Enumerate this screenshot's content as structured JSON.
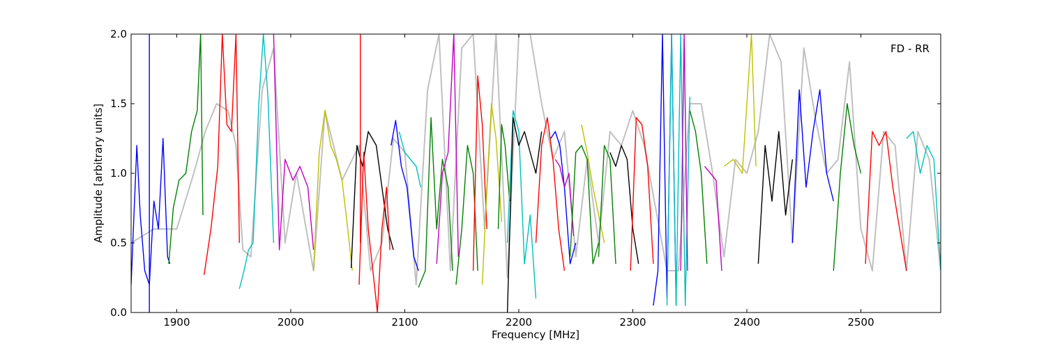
{
  "chart_data": {
    "type": "line",
    "title": "",
    "annotation": "FD - RR",
    "xlabel": "Frequency [MHz]",
    "ylabel": "Amplitude [arbitrary units]",
    "xlim": [
      1860,
      2570
    ],
    "ylim": [
      0.0,
      2.0
    ],
    "xticks": [
      1900,
      2000,
      2100,
      2200,
      2300,
      2400,
      2500
    ],
    "xtick_labels": [
      "1900",
      "2000",
      "2100",
      "2200",
      "2300",
      "2400",
      "2500"
    ],
    "yticks": [
      0.0,
      0.5,
      1.0,
      1.5,
      2.0
    ],
    "ytick_labels": [
      "0.0",
      "0.5",
      "1.0",
      "1.5",
      "2.0"
    ],
    "grid": false,
    "legend": "none",
    "background_series": {
      "color": "#c0c0c0",
      "x": [
        1860,
        1880,
        1900,
        1915,
        1925,
        1935,
        1945,
        1952,
        1958,
        1965,
        1975,
        1985,
        1995,
        2005,
        2020,
        2030,
        2045,
        2060,
        2070,
        2080,
        2090,
        2100,
        2110,
        2120,
        2130,
        2140,
        2150,
        2160,
        2170,
        2180,
        2190,
        2200,
        2210,
        2220,
        2230,
        2240,
        2250,
        2260,
        2270,
        2280,
        2290,
        2300,
        2310,
        2320,
        2330,
        2340,
        2350,
        2360,
        2370,
        2380,
        2390,
        2400,
        2410,
        2420,
        2430,
        2440,
        2450,
        2460,
        2470,
        2480,
        2490,
        2500,
        2510,
        2520,
        2530,
        2540,
        2550,
        2560,
        2570
      ],
      "y": [
        0.5,
        0.6,
        0.6,
        1.0,
        1.3,
        1.5,
        1.45,
        1.2,
        0.45,
        0.4,
        1.6,
        1.9,
        0.5,
        1.0,
        0.3,
        1.45,
        0.95,
        1.2,
        0.3,
        0.5,
        1.25,
        1.15,
        0.2,
        1.6,
        2.0,
        0.3,
        1.9,
        2.0,
        0.6,
        2.0,
        0.25,
        2.0,
        2.0,
        1.5,
        1.1,
        1.3,
        0.4,
        1.1,
        0.5,
        1.3,
        1.2,
        1.45,
        1.2,
        0.75,
        0.3,
        0.3,
        1.5,
        1.5,
        1.0,
        0.4,
        1.1,
        1.0,
        1.3,
        2.0,
        1.8,
        0.5,
        1.9,
        1.4,
        1.0,
        1.1,
        1.8,
        0.6,
        0.3,
        1.3,
        1.2,
        0.3,
        1.3,
        1.1,
        0.3
      ]
    },
    "series": [
      {
        "color": "#0000ff",
        "x": [
          1860,
          1865,
          1868,
          1872,
          1876,
          1880,
          1884,
          1888,
          1892,
          1894
        ],
        "y": [
          0.2,
          1.2,
          0.7,
          0.3,
          0.2,
          0.8,
          0.6,
          1.25,
          0.4,
          0.35
        ]
      },
      {
        "color": "#0000ff",
        "x": [
          1876,
          1876,
          1876
        ],
        "y": [
          0.0,
          2.0,
          0.4
        ]
      },
      {
        "color": "#008000",
        "x": [
          1893,
          1897,
          1902,
          1908,
          1913,
          1918,
          1921,
          1923
        ],
        "y": [
          0.35,
          0.75,
          0.95,
          1.0,
          1.3,
          1.45,
          2.0,
          0.7
        ]
      },
      {
        "color": "#ff0000",
        "x": [
          1924,
          1930,
          1936,
          1940,
          1944,
          1948,
          1952,
          1955
        ],
        "y": [
          0.27,
          0.6,
          1.05,
          2.0,
          1.35,
          1.3,
          2.0,
          0.5
        ]
      },
      {
        "color": "#00bfbf",
        "x": [
          1955,
          1959,
          1963,
          1967,
          1972,
          1976,
          1980,
          1985
        ],
        "y": [
          0.17,
          0.3,
          0.45,
          0.5,
          1.5,
          2.0,
          1.55,
          0.5
        ]
      },
      {
        "color": "#bf00bf",
        "x": [
          1985,
          1990,
          1995,
          2002,
          2008,
          2015,
          2020
        ],
        "y": [
          2.0,
          0.45,
          1.1,
          0.95,
          1.05,
          0.9,
          0.45
        ]
      },
      {
        "color": "#bfbf00",
        "x": [
          2020,
          2025,
          2030,
          2035,
          2040,
          2045,
          2050,
          2054
        ],
        "y": [
          0.3,
          1.15,
          1.45,
          1.2,
          1.1,
          0.95,
          0.6,
          0.3
        ]
      },
      {
        "color": "#000000",
        "x": [
          2053,
          2058,
          2063,
          2068,
          2075,
          2080,
          2085,
          2090
        ],
        "y": [
          0.32,
          1.2,
          1.05,
          1.3,
          1.2,
          0.9,
          0.6,
          0.45
        ]
      },
      {
        "color": "#ff0000",
        "x": [
          2060,
          2064,
          2068,
          2072,
          2076,
          2080,
          2084,
          2087
        ],
        "y": [
          0.2,
          1.15,
          0.6,
          0.3,
          0.0,
          0.6,
          0.9,
          0.45
        ]
      },
      {
        "color": "#ff0000",
        "x": [
          2061,
          2061,
          2061
        ],
        "y": [
          0.6,
          2.0,
          0.5
        ]
      },
      {
        "color": "#0000ff",
        "x": [
          2088,
          2092,
          2097,
          2102,
          2108,
          2112
        ],
        "y": [
          1.2,
          1.38,
          1.05,
          0.9,
          0.4,
          0.3
        ]
      },
      {
        "color": "#00bfbf",
        "x": [
          2095,
          2100,
          2105,
          2110,
          2114
        ],
        "y": [
          1.3,
          1.15,
          1.1,
          1.05,
          0.9
        ]
      },
      {
        "color": "#008000",
        "x": [
          2112,
          2118,
          2123,
          2128,
          2133,
          2138,
          2142
        ],
        "y": [
          0.18,
          0.3,
          1.4,
          0.6,
          1.1,
          0.9,
          0.3
        ]
      },
      {
        "color": "#bf00bf",
        "x": [
          2128,
          2133,
          2138,
          2143,
          2147
        ],
        "y": [
          0.35,
          1.0,
          1.15,
          2.0,
          0.4
        ]
      },
      {
        "color": "#008000",
        "x": [
          2145,
          2150,
          2155,
          2160,
          2164
        ],
        "y": [
          0.2,
          0.6,
          1.2,
          1.0,
          0.3
        ]
      },
      {
        "color": "#ff0000",
        "x": [
          2160,
          2164,
          2168,
          2172
        ],
        "y": [
          0.3,
          1.7,
          1.35,
          0.6
        ]
      },
      {
        "color": "#bfbf00",
        "x": [
          2168,
          2172,
          2176,
          2180,
          2185
        ],
        "y": [
          0.2,
          0.9,
          1.5,
          1.25,
          0.65
        ]
      },
      {
        "color": "#008000",
        "x": [
          2182,
          2185,
          2188,
          2192
        ],
        "y": [
          0.6,
          1.35,
          1.2,
          0.8
        ]
      },
      {
        "color": "#00bfbf",
        "x": [
          2190,
          2195,
          2200,
          2205,
          2210,
          2215
        ],
        "y": [
          0.5,
          1.45,
          1.3,
          0.35,
          0.7,
          0.1
        ]
      },
      {
        "color": "#000000",
        "x": [
          2190,
          2195,
          2200,
          2205,
          2210,
          2215,
          2220
        ],
        "y": [
          0.0,
          1.4,
          1.2,
          1.3,
          1.15,
          1.0,
          1.3
        ]
      },
      {
        "color": "#ff0000",
        "x": [
          2215,
          2220,
          2225,
          2230,
          2235,
          2240
        ],
        "y": [
          0.5,
          1.2,
          1.4,
          1.1,
          0.6,
          0.3
        ]
      },
      {
        "color": "#0000ff",
        "x": [
          2228,
          2232,
          2236,
          2240,
          2245,
          2250
        ],
        "y": [
          1.25,
          1.3,
          1.2,
          0.9,
          0.35,
          0.5
        ]
      },
      {
        "color": "#bf00bf",
        "x": [
          2232,
          2236,
          2240,
          2244,
          2248
        ],
        "y": [
          1.1,
          1.05,
          0.9,
          1.0,
          0.55
        ]
      },
      {
        "color": "#008000",
        "x": [
          2245,
          2250,
          2255,
          2260,
          2265,
          2270
        ],
        "y": [
          0.4,
          1.15,
          1.2,
          1.1,
          0.35,
          0.5
        ]
      },
      {
        "color": "#bfbf00",
        "x": [
          2255,
          2260,
          2265,
          2270,
          2275
        ],
        "y": [
          1.35,
          1.15,
          0.9,
          0.7,
          0.5
        ]
      },
      {
        "color": "#008000",
        "x": [
          2270,
          2275,
          2280,
          2285
        ],
        "y": [
          0.4,
          1.2,
          1.1,
          0.35
        ]
      },
      {
        "color": "#000000",
        "x": [
          2280,
          2285,
          2290,
          2295,
          2300,
          2305
        ],
        "y": [
          1.15,
          1.05,
          1.2,
          1.1,
          0.6,
          0.35
        ]
      },
      {
        "color": "#ff0000",
        "x": [
          2298,
          2303,
          2308,
          2313,
          2318
        ],
        "y": [
          0.3,
          1.4,
          1.35,
          1.05,
          0.35
        ]
      },
      {
        "color": "#0000ff",
        "x": [
          2318,
          2322,
          2326,
          2330,
          2334,
          2338
        ],
        "y": [
          0.05,
          0.3,
          2.0,
          0.1,
          2.0,
          0.05
        ]
      },
      {
        "color": "#00bfbf",
        "x": [
          2330,
          2334,
          2338,
          2342,
          2346,
          2350
        ],
        "y": [
          0.05,
          2.0,
          0.05,
          2.0,
          0.05,
          1.55
        ]
      },
      {
        "color": "#bf00bf",
        "x": [
          2342,
          2345,
          2348
        ],
        "y": [
          0.3,
          2.0,
          0.3
        ]
      },
      {
        "color": "#008000",
        "x": [
          2350,
          2355,
          2360,
          2365
        ],
        "y": [
          1.45,
          1.3,
          1.0,
          0.35
        ]
      },
      {
        "color": "#bf00bf",
        "x": [
          2363,
          2368,
          2373,
          2378
        ],
        "y": [
          1.05,
          1.0,
          0.95,
          0.3
        ]
      },
      {
        "color": "#bfbf00",
        "x": [
          2380,
          2388,
          2396,
          2404,
          2408
        ],
        "y": [
          1.05,
          1.1,
          1.0,
          2.0,
          1.05
        ]
      },
      {
        "color": "#000000",
        "x": [
          2410,
          2416,
          2422,
          2428,
          2434,
          2440
        ],
        "y": [
          0.35,
          1.2,
          0.8,
          1.3,
          0.7,
          1.1
        ]
      },
      {
        "color": "#0000ff",
        "x": [
          2440,
          2446,
          2452,
          2458,
          2464,
          2470,
          2476
        ],
        "y": [
          0.5,
          1.6,
          0.9,
          1.3,
          1.6,
          1.0,
          0.8
        ]
      },
      {
        "color": "#008000",
        "x": [
          2476,
          2482,
          2488,
          2494,
          2500
        ],
        "y": [
          0.3,
          1.0,
          1.5,
          1.2,
          1.0
        ]
      },
      {
        "color": "#ff0000",
        "x": [
          2504,
          2510,
          2516,
          2522,
          2528,
          2534,
          2540
        ],
        "y": [
          0.35,
          1.3,
          1.2,
          1.3,
          0.9,
          0.6,
          0.3
        ]
      },
      {
        "color": "#00bfbf",
        "x": [
          2540,
          2546,
          2552,
          2558,
          2564,
          2570
        ],
        "y": [
          1.25,
          1.3,
          1.0,
          1.2,
          1.1,
          0.3
        ]
      }
    ]
  }
}
